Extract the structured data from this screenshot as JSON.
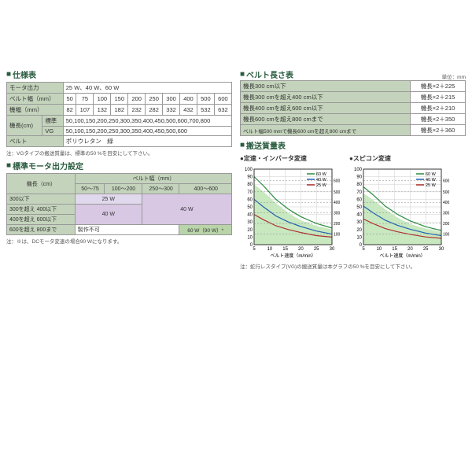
{
  "spec": {
    "title": "仕様表",
    "rows": [
      [
        "モータ出力",
        "25 W、40 W、60 W"
      ],
      [
        "ベルト幅（mm）",
        "50",
        "75",
        "100",
        "150",
        "200",
        "250",
        "300",
        "400",
        "500",
        "600"
      ],
      [
        "機幅（mm）",
        "82",
        "107",
        "132",
        "182",
        "232",
        "282",
        "332",
        "432",
        "532",
        "632"
      ]
    ],
    "lengthLabel": "機長(cm)",
    "stdLabel": "標準",
    "vgLabel": "VG",
    "stdValues": "50,100,150,200,250,300,350,400,450,500,600,700,800",
    "vgValues": "50,100,150,200,250,300,350,400,450,500,600",
    "beltLabel": "ベルト",
    "beltValue": "ポリウレタン　緑",
    "note": "注：VGタイプの搬送質量は、標準の50 %を目安にして下さい。"
  },
  "motor": {
    "title": "標準モータ出力設定",
    "rowHead": "機長（cm）",
    "colHead": "ベルト幅（mm）",
    "cols": [
      "50～75",
      "100～200",
      "250～300",
      "400～600"
    ],
    "rows": [
      "300以下",
      "300を超え 400以下",
      "400を超え 600以下",
      "600を超え 800まで"
    ],
    "val25": "25 W",
    "val40": "40 W",
    "val60": "60 W（90 W）*",
    "valNA": "製作不可",
    "note": "注：※は、DCモータ変速の場合90 Wになります。"
  },
  "beltLen": {
    "title": "ベルト長さ表",
    "unit": "単位：mm",
    "rows": [
      [
        "機長300 cm以下",
        "機長×2＋225"
      ],
      [
        "機長300 cmを超え400 cm以下",
        "機長×2＋215"
      ],
      [
        "機長400 cmを超え600 cm以下",
        "機長×2＋210"
      ],
      [
        "機長600 cmを超え800 cmまで",
        "機長×2＋350"
      ],
      [
        "ベルト幅500 mmで機長600 cmを超え800 cmまで",
        "機長×2＋360"
      ]
    ]
  },
  "load": {
    "title": "搬送質量表",
    "chart1Title": "●定速・インバータ変速",
    "chart2Title": "●スピコン変速",
    "xlabel": "ベルト速度（m/min）",
    "ylabelLeft": "搬送質量(kg)",
    "ylabelRight": "ベルト幅による最大搬送質量(kg)",
    "legend": [
      "60 W",
      "40 W",
      "25 W"
    ],
    "legendColors": [
      "#2a8a3f",
      "#2060b0",
      "#b03030"
    ],
    "widthLabels": [
      "600",
      "500",
      "400",
      "300",
      "200",
      "100"
    ],
    "xticks": [
      5,
      10,
      15,
      20,
      25,
      30
    ],
    "yticks": [
      0,
      10,
      20,
      30,
      40,
      50,
      60,
      70,
      80,
      90,
      100
    ],
    "note": "注：蛇行レスタイプ(VG)の搬送質量は本グラフの50 %を目安にして下さい。"
  }
}
